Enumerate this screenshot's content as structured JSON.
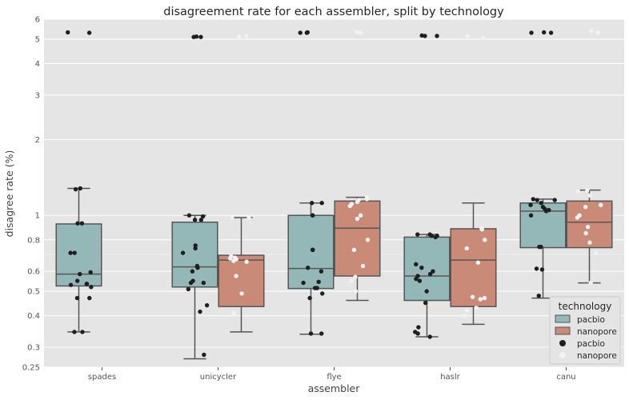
{
  "chart_data": {
    "type": "box",
    "title": "disagreement rate for each assembler, split by technology",
    "xlabel": "assembler",
    "ylabel": "disagree rate (%)",
    "yscale": "log",
    "ylim": [
      0.25,
      6
    ],
    "yticks": [
      0.25,
      0.3,
      0.4,
      0.5,
      0.6,
      0.8,
      1,
      2,
      3,
      4,
      5,
      6
    ],
    "ytick_labels": [
      "0.25",
      "0.3",
      "0.4",
      "0.5",
      "0.6",
      "0.8",
      "1",
      "2",
      "3",
      "4",
      "5",
      "6"
    ],
    "categories": [
      "spades",
      "unicycler",
      "flye",
      "haslr",
      "canu"
    ],
    "grid": true,
    "legend": {
      "title": "technology",
      "placement": "bottom-right",
      "box_entries": [
        "pacbio",
        "nanopore"
      ],
      "point_entries": [
        "pacbio",
        "nanopore"
      ]
    },
    "colors": {
      "pacbio_box": "#94b8b8",
      "nanopore_box": "#c98b78",
      "pacbio_point": "#1f1f1f",
      "nanopore_point": "#f2f2f2",
      "background": "#e5e5e5",
      "box_edge": "#555555"
    },
    "series": [
      {
        "name": "pacbio",
        "boxes": [
          {
            "category": "spades",
            "whislo": 0.345,
            "q1": 0.525,
            "med": 0.585,
            "q3": 0.925,
            "whishi": 1.28
          },
          {
            "category": "unicycler",
            "whislo": 0.27,
            "q1": 0.52,
            "med": 0.625,
            "q3": 0.94,
            "whishi": 1.0
          },
          {
            "category": "flye",
            "whislo": 0.338,
            "q1": 0.513,
            "med": 0.616,
            "q3": 1.0,
            "whishi": 1.12
          },
          {
            "category": "haslr",
            "whislo": 0.33,
            "q1": 0.46,
            "med": 0.575,
            "q3": 0.82,
            "whishi": 0.84
          },
          {
            "category": "canu",
            "whislo": 0.47,
            "q1": 0.745,
            "med": 1.04,
            "q3": 1.12,
            "whishi": 1.16
          }
        ],
        "points": {
          "spades": [
            5.3,
            5.32,
            1.28,
            1.27,
            0.93,
            0.93,
            0.71,
            0.71,
            0.585,
            0.595,
            0.535,
            0.53,
            0.52,
            0.535,
            0.55,
            0.47,
            0.47,
            0.345,
            0.345
          ],
          "unicycler": [
            5.1,
            5.12,
            5.1,
            1.0,
            0.99,
            0.96,
            0.96,
            0.76,
            0.74,
            0.71,
            0.63,
            0.62,
            0.6,
            0.54,
            0.54,
            0.55,
            0.51,
            0.44,
            0.415,
            0.28
          ],
          "flye": [
            5.3,
            5.32,
            5.3,
            1.12,
            1.12,
            1.0,
            1.0,
            0.73,
            0.73,
            0.62,
            0.6,
            0.545,
            0.54,
            0.515,
            0.515,
            0.49,
            0.47,
            0.34,
            0.34
          ],
          "haslr": [
            5.15,
            5.17,
            5.15,
            0.84,
            0.83,
            0.83,
            0.84,
            0.82,
            0.64,
            0.62,
            0.6,
            0.585,
            0.575,
            0.56,
            0.55,
            0.5,
            0.45,
            0.36,
            0.345,
            0.34,
            0.33
          ],
          "canu": [
            5.3,
            5.32,
            5.3,
            1.16,
            1.15,
            1.15,
            1.12,
            1.1,
            1.08,
            1.06,
            1.05,
            1.04,
            1.0,
            0.75,
            0.75,
            0.615,
            0.61,
            0.48
          ]
        }
      },
      {
        "name": "nanopore",
        "boxes": [
          {
            "category": "unicycler",
            "whislo": 0.345,
            "q1": 0.435,
            "med": 0.665,
            "q3": 0.695,
            "whishi": 0.98
          },
          {
            "category": "flye",
            "whislo": 0.46,
            "q1": 0.575,
            "med": 0.89,
            "q3": 1.14,
            "whishi": 1.18
          },
          {
            "category": "haslr",
            "whislo": 0.37,
            "q1": 0.435,
            "med": 0.665,
            "q3": 0.885,
            "whishi": 1.12
          },
          {
            "category": "canu",
            "whislo": 0.54,
            "q1": 0.745,
            "med": 0.94,
            "q3": 1.14,
            "whishi": 1.26
          }
        ],
        "points": {
          "unicycler": [
            5.15,
            5.1,
            0.98,
            0.98,
            0.69,
            0.68,
            0.675,
            0.67,
            0.66,
            0.655,
            0.575,
            0.49,
            0.41
          ],
          "flye": [
            5.35,
            5.3,
            1.18,
            1.16,
            1.15,
            1.13,
            1.11,
            1.09,
            1.0,
            0.97,
            0.8,
            0.73,
            0.63,
            0.57,
            0.55,
            0.5
          ],
          "haslr": [
            5.15,
            5.05,
            0.89,
            0.88,
            0.8,
            0.74,
            0.65,
            0.475,
            0.47,
            0.465,
            0.43,
            0.42,
            0.4
          ],
          "canu": [
            5.4,
            5.3,
            1.26,
            1.25,
            1.2,
            1.1,
            1.08,
            1.0,
            0.98,
            0.9,
            0.85,
            0.78,
            0.71,
            0.54
          ]
        }
      }
    ]
  }
}
